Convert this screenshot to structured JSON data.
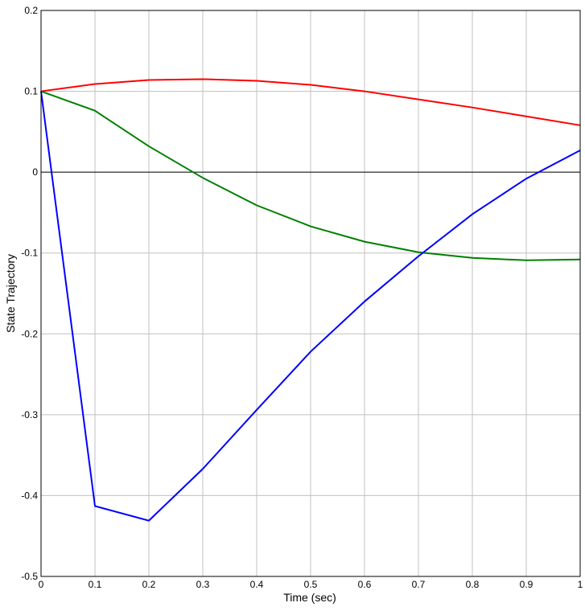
{
  "chart_data": {
    "type": "line",
    "title": "",
    "xlabel": "Time (sec)",
    "ylabel": "State Trajectory",
    "xlim": [
      0,
      1
    ],
    "ylim": [
      -0.5,
      0.2
    ],
    "grid": true,
    "x_ticks": [
      "0",
      "0.1",
      "0.2",
      "0.3",
      "0.4",
      "0.5",
      "0.6",
      "0.7",
      "0.8",
      "0.9",
      "1"
    ],
    "y_ticks": [
      "0.2",
      "0.1",
      "0",
      "-0.1",
      "-0.2",
      "-0.3",
      "-0.4",
      "-0.5"
    ],
    "x": [
      0,
      0.1,
      0.2,
      0.3,
      0.4,
      0.5,
      0.6,
      0.7,
      0.8,
      0.9,
      1
    ],
    "series": [
      {
        "color": "#ff0000",
        "values": [
          0.1,
          0.109,
          0.114,
          0.115,
          0.113,
          0.108,
          0.1,
          0.09,
          0.08,
          0.069,
          0.058
        ]
      },
      {
        "color": "#008000",
        "values": [
          0.1,
          0.076,
          0.032,
          -0.007,
          -0.041,
          -0.067,
          -0.086,
          -0.099,
          -0.106,
          -0.109,
          -0.108
        ]
      },
      {
        "color": "#0000ff",
        "values": [
          0.1,
          -0.413,
          -0.431,
          -0.367,
          -0.294,
          -0.222,
          -0.16,
          -0.104,
          -0.052,
          -0.008,
          0.027
        ]
      }
    ]
  }
}
